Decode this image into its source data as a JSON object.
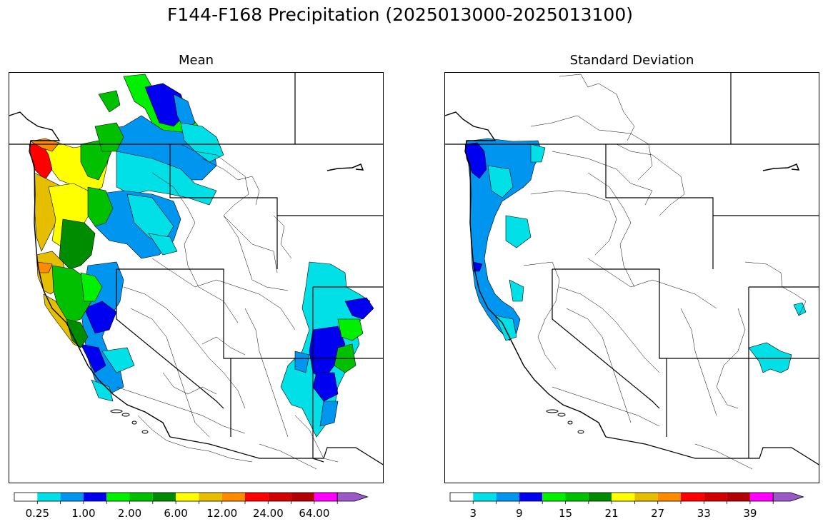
{
  "title": "F144-F168 Precipitation (2025013000-2025013100)",
  "panels": [
    {
      "title": "Mean"
    },
    {
      "title": "Standard Deviation"
    }
  ],
  "colorbar": {
    "colors": [
      "#ffffff",
      "#00e0e6",
      "#0096f0",
      "#0000f0",
      "#00f000",
      "#00c000",
      "#008c00",
      "#ffff00",
      "#e6be00",
      "#ff8c00",
      "#ff0000",
      "#d20000",
      "#b40000",
      "#ff00ff",
      "#9b59c8"
    ],
    "mean_ticks": [
      "0.25",
      "1.00",
      "2.00",
      "6.00",
      "12.00",
      "24.00",
      "64.00"
    ],
    "sd_ticks": [
      "3",
      "9",
      "15",
      "21",
      "27",
      "33",
      "39"
    ]
  }
}
